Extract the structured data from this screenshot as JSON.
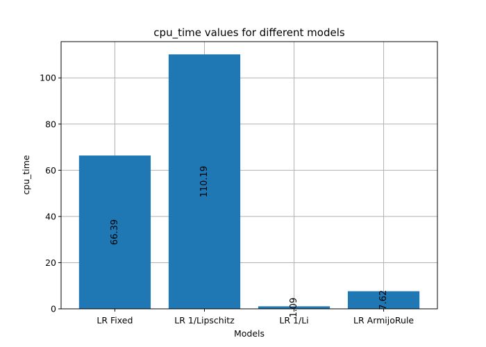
{
  "chart_data": {
    "type": "bar",
    "title": "cpu_time values for different models",
    "xlabel": "Models",
    "ylabel": "cpu_time",
    "categories": [
      "LR Fixed",
      "LR 1/Lipschitz",
      "LR 1/Li",
      "LR ArmijoRule"
    ],
    "values": [
      66.39,
      110.19,
      1.09,
      7.62
    ],
    "data_labels": [
      "66.39",
      "110.19",
      "1.09",
      "7.62"
    ],
    "ylim": [
      0,
      115.7
    ],
    "yticks": [
      0,
      20,
      40,
      60,
      80,
      100
    ],
    "grid": true,
    "bar_color": "#1f77b4"
  }
}
